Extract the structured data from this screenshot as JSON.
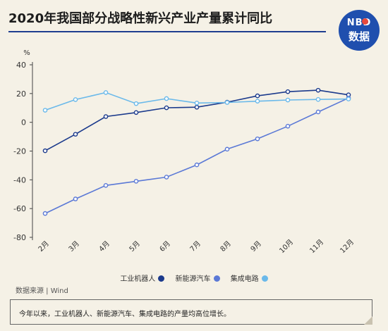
{
  "title": "2020年我国部分战略性新兴产业产量累计同比",
  "logo": {
    "line1": "NBD",
    "line2": "数据"
  },
  "source": "数据来源 | Wind",
  "note": "今年以来，工业机器人、新能源汽车、集成电路的产量均高位增长。",
  "chart_data": {
    "type": "line",
    "ylabel": "%",
    "ylim": [
      -80,
      40
    ],
    "yticks": [
      40,
      20,
      0,
      -20,
      -40,
      -60,
      -80
    ],
    "categories": [
      "2月",
      "3月",
      "4月",
      "5月",
      "6月",
      "7月",
      "8月",
      "9月",
      "10月",
      "11月",
      "12月"
    ],
    "grid": false,
    "legend_position": "bottom",
    "series": [
      {
        "name": "工业机器人",
        "color": "#1b3a8c",
        "values": [
          -19.8,
          -8.3,
          4,
          6.8,
          10.1,
          10.5,
          14,
          18.4,
          21.3,
          22.3,
          19.1
        ]
      },
      {
        "name": "新能源汽车",
        "color": "#5b79d6",
        "values": [
          -63.4,
          -53.3,
          -43.9,
          -41,
          -38.1,
          -29.6,
          -18.7,
          -11.5,
          -2.7,
          7.2,
          16.9
        ]
      },
      {
        "name": "集成电路",
        "color": "#6ab9ea",
        "values": [
          8.4,
          15.8,
          20.7,
          13,
          16.5,
          13.4,
          13.8,
          14.7,
          15.5,
          15.9,
          16.2
        ]
      }
    ]
  }
}
